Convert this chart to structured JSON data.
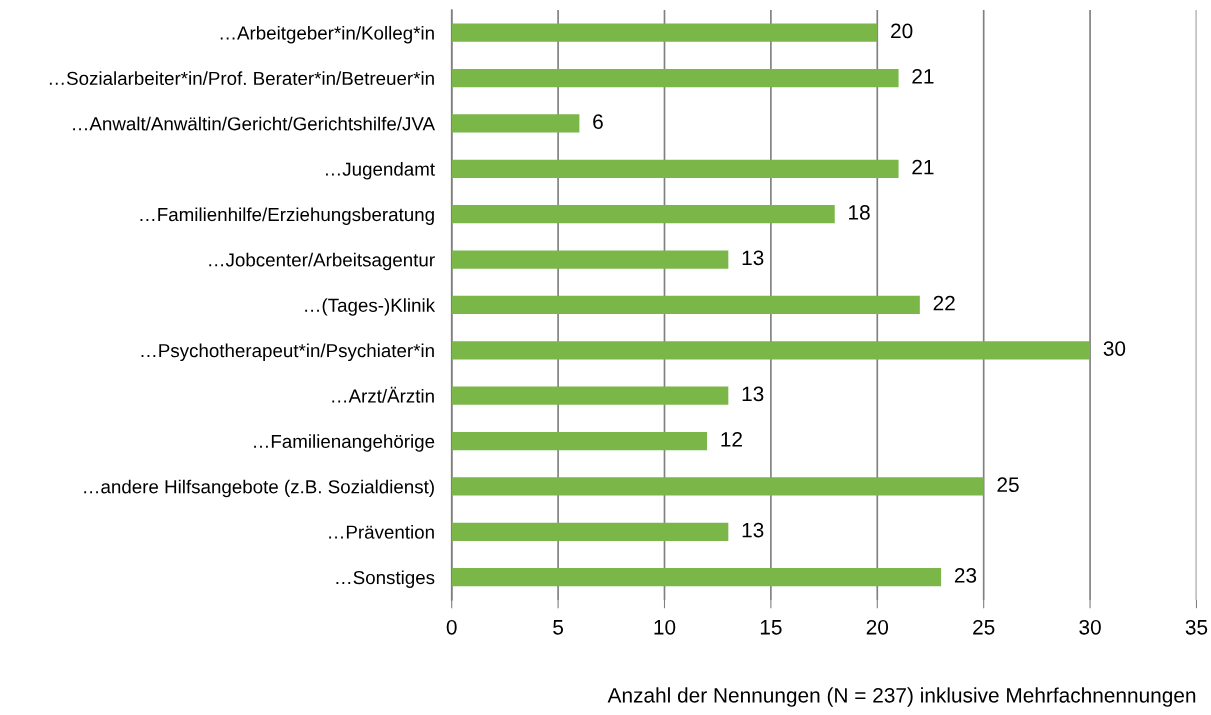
{
  "chart_data": {
    "type": "bar",
    "orientation": "horizontal",
    "xlabel": "Anzahl der Nennungen (N = 237) inklusive Mehrfachnennungen",
    "categories": [
      "…Arbeitgeber*in/Kolleg*in",
      "…Sozialarbeiter*in/Prof. Berater*in/Betreuer*in",
      "…Anwalt/Anwältin/Gericht/Gerichtshilfe/JVA",
      "…Jugendamt",
      "…Familienhilfe/Erziehungsberatung",
      "…Jobcenter/Arbeitsagentur",
      "…(Tages-)Klinik",
      "…Psychotherapeut*in/Psychiater*in",
      "…Arzt/Ärztin",
      "…Familienangehörige",
      "…andere Hilfsangebote (z.B. Sozialdienst)",
      "…Prävention",
      "…Sonstiges"
    ],
    "values": [
      20,
      21,
      6,
      21,
      18,
      13,
      22,
      30,
      13,
      12,
      25,
      13,
      23
    ],
    "color": "#7ab648",
    "xlim": [
      0,
      35
    ],
    "xticks": [
      0,
      5,
      10,
      15,
      20,
      25,
      30,
      35
    ],
    "grid": "x",
    "data_labels": true
  }
}
